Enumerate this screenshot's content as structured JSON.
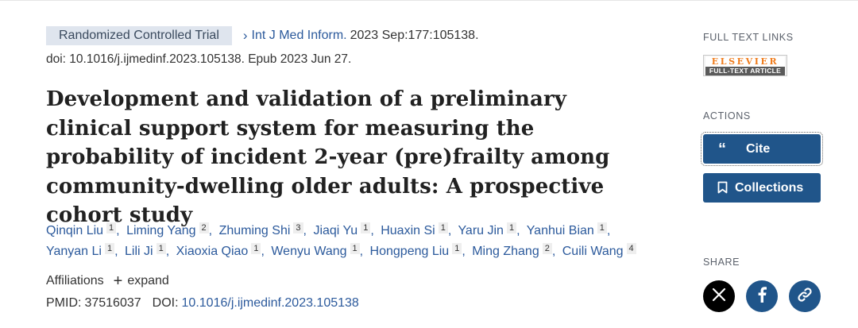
{
  "article": {
    "pub_type": "Randomized Controlled Trial",
    "journal": "Int J Med Inform.",
    "citation": "2023 Sep:177:105138.",
    "doi_epub": "doi: 10.1016/j.ijmedinf.2023.105138. Epub 2023 Jun 27.",
    "title": "Development and validation of a preliminary clinical support system for measuring the probability of incident 2-year (pre)frailty among community-dwelling older adults: A prospective cohort study",
    "authors": [
      {
        "name": "Qinqin Liu",
        "aff": "1"
      },
      {
        "name": "Liming Yang",
        "aff": "2"
      },
      {
        "name": "Zhuming Shi",
        "aff": "3"
      },
      {
        "name": "Jiaqi Yu",
        "aff": "1"
      },
      {
        "name": "Huaxin Si",
        "aff": "1"
      },
      {
        "name": "Yaru Jin",
        "aff": "1"
      },
      {
        "name": "Yanhui Bian",
        "aff": "1"
      },
      {
        "name": "Yanyan Li",
        "aff": "1"
      },
      {
        "name": "Lili Ji",
        "aff": "1"
      },
      {
        "name": "Xiaoxia Qiao",
        "aff": "1"
      },
      {
        "name": "Wenyu Wang",
        "aff": "1"
      },
      {
        "name": "Hongpeng Liu",
        "aff": "1"
      },
      {
        "name": "Ming Zhang",
        "aff": "2"
      },
      {
        "name": "Cuili Wang",
        "aff": "4"
      }
    ],
    "affiliations_label": "Affiliations",
    "expand_label": "expand",
    "pmid_label": "PMID:",
    "pmid": "37516037",
    "doi_label": "DOI:",
    "doi": "10.1016/j.ijmedinf.2023.105138"
  },
  "sidebar": {
    "full_text_heading": "FULL TEXT LINKS",
    "elsevier_top": "ELSEVIER",
    "elsevier_bottom": "FULL-TEXT ARTICLE",
    "actions_heading": "ACTIONS",
    "cite_label": "Cite",
    "collections_label": "Collections",
    "share_heading": "SHARE"
  },
  "colors": {
    "link": "#2c5a9c",
    "button": "#20558a",
    "pub_type_bg": "#dfe5ee",
    "elsevier_orange": "#f07c1c"
  },
  "icons": {
    "chevron": "chevron-right-icon",
    "cite": "quote-icon",
    "collections": "bookmark-icon",
    "share_x": "x-logo-icon",
    "share_facebook": "facebook-icon",
    "share_link": "link-icon"
  }
}
